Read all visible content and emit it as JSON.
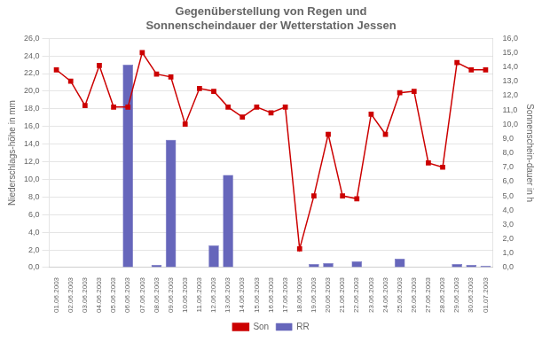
{
  "chart_data": {
    "type": "bar",
    "title": "Gegenüberstellung von Regen und\nSonnenscheindauer der Wetterstation Jessen",
    "ylabel": "Niederschlags-höhe in mm",
    "y2label": "Sonnenschein-dauer in h",
    "categories": [
      "01.06.2003",
      "02.06.2003",
      "03.06.2003",
      "04.06.2003",
      "05.06.2003",
      "06.06.2003",
      "07.06.2003",
      "08.06.2003",
      "09.06.2003",
      "10.06.2003",
      "11.06.2003",
      "12.06.2003",
      "13.06.2003",
      "14.06.2003",
      "15.06.2003",
      "16.06.2003",
      "17.06.2003",
      "18.06.2003",
      "19.06.2003",
      "20.06.2003",
      "21.06.2003",
      "22.06.2003",
      "23.06.2003",
      "24.06.2003",
      "25.06.2003",
      "26.06.2003",
      "27.06.2003",
      "28.06.2003",
      "29.06.2003",
      "30.06.2003",
      "01.07.2003"
    ],
    "series": [
      {
        "name": "RR",
        "type": "bar",
        "color": "#6666bb",
        "values": [
          0,
          0,
          0,
          0,
          0,
          23,
          0,
          0.3,
          14.5,
          0,
          0,
          2.5,
          10.5,
          0,
          0,
          0,
          0,
          0,
          0.4,
          0.5,
          0,
          0.7,
          0,
          0,
          1.0,
          0,
          0,
          0,
          0.4,
          0.3,
          0.2
        ]
      },
      {
        "name": "Son",
        "type": "line",
        "axis": "y2",
        "color": "#cc0000",
        "marker": "square",
        "values": [
          13.8,
          13.0,
          11.3,
          14.1,
          11.2,
          11.2,
          15.0,
          13.5,
          13.3,
          10.0,
          12.5,
          12.3,
          11.2,
          10.5,
          11.2,
          10.8,
          11.2,
          1.3,
          5.0,
          9.3,
          5.0,
          4.8,
          10.7,
          9.3,
          12.2,
          12.3,
          7.3,
          7.0,
          14.3,
          13.8,
          13.8
        ]
      }
    ],
    "ylim": [
      0,
      26
    ],
    "yticks": [
      {
        "value": 0,
        "label": "0,0"
      },
      {
        "value": 2,
        "label": "2,0"
      },
      {
        "value": 4,
        "label": "4,0"
      },
      {
        "value": 6,
        "label": "6,0"
      },
      {
        "value": 8,
        "label": "8,0"
      },
      {
        "value": 10,
        "label": "10,0"
      },
      {
        "value": 12,
        "label": "12,0"
      },
      {
        "value": 14,
        "label": "14,0"
      },
      {
        "value": 16,
        "label": "16,0"
      },
      {
        "value": 18,
        "label": "18,0"
      },
      {
        "value": 20,
        "label": "20,0"
      },
      {
        "value": 22,
        "label": "22,0"
      },
      {
        "value": 24,
        "label": "24,0"
      },
      {
        "value": 26,
        "label": "26,0"
      }
    ],
    "y2lim": [
      0,
      16
    ],
    "y2ticks": [
      {
        "value": 0,
        "label": "0,0"
      },
      {
        "value": 1,
        "label": "1,0"
      },
      {
        "value": 2,
        "label": "2,0"
      },
      {
        "value": 3,
        "label": "3,0"
      },
      {
        "value": 4,
        "label": "4,0"
      },
      {
        "value": 5,
        "label": "5,0"
      },
      {
        "value": 6,
        "label": "6,0"
      },
      {
        "value": 7,
        "label": "7,0"
      },
      {
        "value": 8,
        "label": "8,0"
      },
      {
        "value": 9,
        "label": "9,0"
      },
      {
        "value": 10,
        "label": "10,0"
      },
      {
        "value": 11,
        "label": "11,0"
      },
      {
        "value": 12,
        "label": "12,0"
      },
      {
        "value": 13,
        "label": "13,0"
      },
      {
        "value": 14,
        "label": "14,0"
      },
      {
        "value": 15,
        "label": "15,0"
      },
      {
        "value": 16,
        "label": "16,0"
      }
    ],
    "grid": true,
    "legend": "bottom"
  }
}
